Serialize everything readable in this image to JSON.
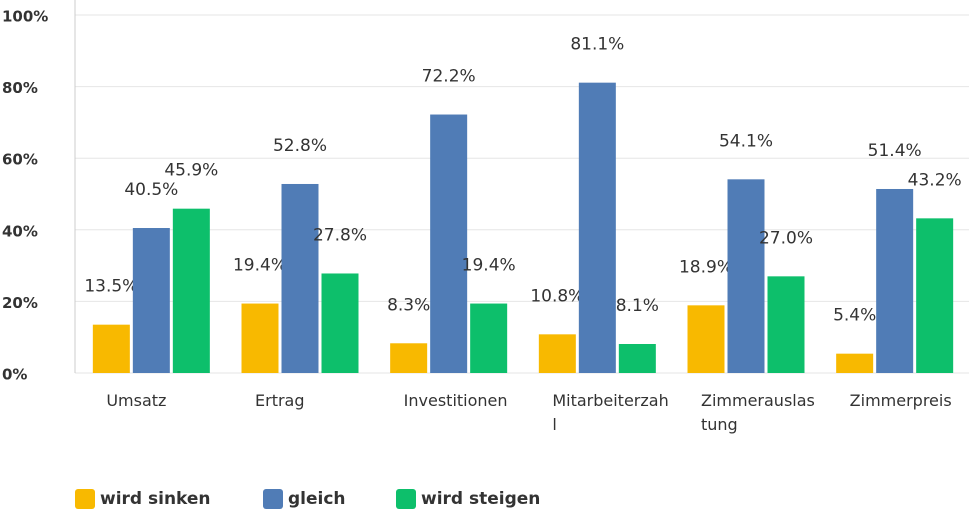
{
  "chart_data": {
    "type": "bar",
    "categories": [
      "Umsatz",
      "Ertrag",
      "Investitionen",
      "Mitarbeiterzahl",
      "Zimmerauslastung",
      "Zimmerpreis"
    ],
    "series": [
      {
        "name": "wird sinken",
        "color": "#f8b900",
        "values": [
          13.5,
          19.4,
          8.3,
          10.8,
          18.9,
          5.4
        ],
        "value_labels": [
          "13.5%",
          "19.4%",
          "8.3%",
          "10.8%",
          "18.9%",
          "5.4%"
        ]
      },
      {
        "name": "gleich",
        "color": "#507cb6",
        "values": [
          40.5,
          52.8,
          72.2,
          81.1,
          54.1,
          51.4
        ],
        "value_labels": [
          "40.5%",
          "52.8%",
          "72.2%",
          "81.1%",
          "54.1%",
          "51.4%"
        ]
      },
      {
        "name": "wird steigen",
        "color": "#0dbf6b",
        "values": [
          45.9,
          27.8,
          19.4,
          8.1,
          27.0,
          43.2
        ],
        "value_labels": [
          "45.9%",
          "27.8%",
          "19.4%",
          "8.1%",
          "27.0%",
          "43.2%"
        ]
      }
    ],
    "ylim": [
      0,
      100
    ],
    "yticks": [
      {
        "value": 0,
        "label": "0%"
      },
      {
        "value": 20,
        "label": "20%"
      },
      {
        "value": 40,
        "label": "40%"
      },
      {
        "value": 60,
        "label": "60%"
      },
      {
        "value": 80,
        "label": "80%"
      },
      {
        "value": 100,
        "label": "100%"
      }
    ],
    "grid": true,
    "legend": "bottom"
  }
}
